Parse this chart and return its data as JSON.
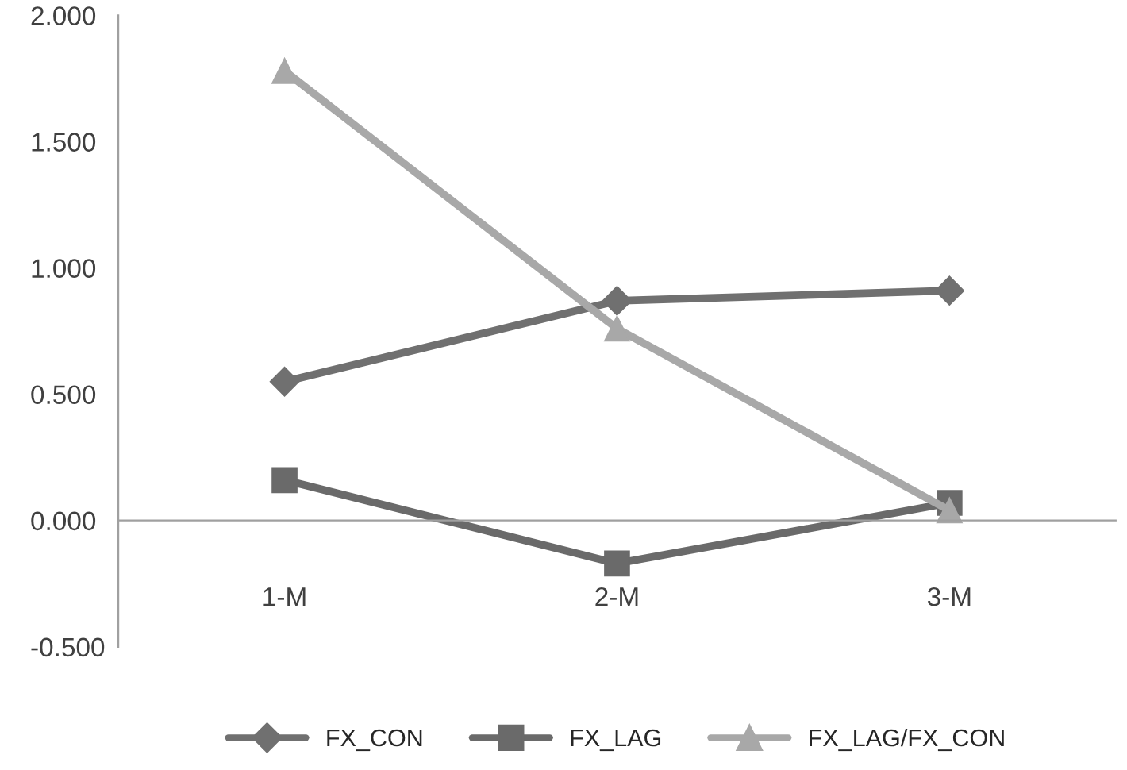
{
  "chart_data": {
    "type": "line",
    "categories": [
      "1-M",
      "2-M",
      "3-M"
    ],
    "series": [
      {
        "name": "FX_CON",
        "color": "#707070",
        "marker": "diamond",
        "values": [
          0.55,
          0.87,
          0.91
        ]
      },
      {
        "name": "FX_LAG",
        "color": "#6a6a6a",
        "marker": "square",
        "values": [
          0.16,
          -0.17,
          0.07
        ]
      },
      {
        "name": "FX_LAG/FX_CON",
        "color": "#a8a8a8",
        "marker": "triangle",
        "values": [
          1.78,
          0.76,
          0.04
        ]
      }
    ],
    "ylim": [
      -0.5,
      2.0
    ],
    "yticks": [
      {
        "value": -0.5,
        "label": "-0.500"
      },
      {
        "value": 0,
        "label": "0.000"
      },
      {
        "value": 0.5,
        "label": "0.500"
      },
      {
        "value": 1.0,
        "label": "1.000"
      },
      {
        "value": 1.5,
        "label": "1.500"
      },
      {
        "value": 2.0,
        "label": "2.000"
      }
    ],
    "grid": false,
    "legend": "bottom",
    "line_style": "solid"
  }
}
